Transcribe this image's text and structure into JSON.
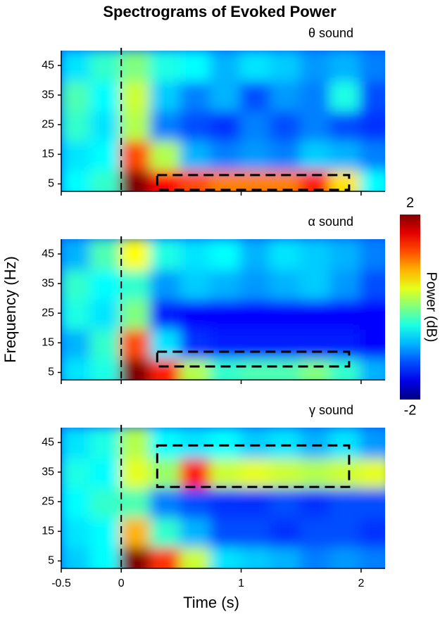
{
  "title": "Spectrograms of Evoked Power",
  "xlabel": "Time (s)",
  "ylabel": "Frequency (Hz)",
  "colorbar": {
    "label": "Power (dB)",
    "clim": [
      -2,
      2
    ],
    "ticks": [
      2,
      -2
    ]
  },
  "chart_data": [
    {
      "type": "heatmap",
      "label": "θ sound",
      "x": [
        -0.375,
        -0.125,
        0.125,
        0.375,
        0.625,
        0.875,
        1.125,
        1.375,
        1.625,
        1.875,
        2.125
      ],
      "y": [
        5,
        15,
        25,
        35,
        45
      ],
      "z": [
        [
          -0.5,
          -0.3,
          2,
          1.5,
          1.2,
          1.0,
          1.0,
          1.0,
          1.4,
          0.6,
          -0.5
        ],
        [
          -0.6,
          -0.5,
          1.2,
          0.2,
          -0.8,
          -1,
          -0.9,
          -1,
          -0.7,
          -0.8,
          -1
        ],
        [
          -0.3,
          -0.6,
          0.2,
          -1,
          -1.2,
          -1.3,
          -1,
          -1.2,
          -1,
          -1.2,
          -1.3
        ],
        [
          -0.2,
          -0.5,
          0.3,
          -0.7,
          -1,
          -0.8,
          -1.2,
          -0.9,
          -1,
          -0.4,
          -1.2
        ],
        [
          -0.6,
          -0.3,
          0,
          -0.4,
          -0.5,
          -0.8,
          -0.6,
          -0.7,
          -0.9,
          -0.8,
          -1
        ]
      ],
      "xlim": [
        -0.5,
        2.2
      ],
      "ylim": [
        2.5,
        50
      ],
      "xticks": [
        -0.5,
        0,
        1,
        2
      ],
      "yticks": [
        5,
        15,
        25,
        35,
        45
      ],
      "vline": 0,
      "box": {
        "x": [
          0.3,
          1.9
        ],
        "y": [
          3,
          8
        ]
      }
    },
    {
      "type": "heatmap",
      "label": "α sound",
      "x": [
        -0.375,
        -0.125,
        0.125,
        0.375,
        0.625,
        0.875,
        1.125,
        1.375,
        1.625,
        1.875,
        2.125
      ],
      "y": [
        5,
        15,
        25,
        35,
        45
      ],
      "z": [
        [
          -0.6,
          -0.4,
          2,
          1.4,
          0.2,
          -0.3,
          -0.2,
          -0.2,
          0,
          -0.3,
          -0.8
        ],
        [
          -0.8,
          -0.3,
          1.2,
          -0.6,
          -1.3,
          -1.4,
          -1.4,
          -1.4,
          -1.4,
          -1.4,
          -1.5
        ],
        [
          -0.4,
          -0.6,
          0,
          -1.4,
          -1.5,
          -1.5,
          -1.5,
          -1.5,
          -1.5,
          -1.5,
          -1.5
        ],
        [
          -0.3,
          -0.5,
          -0.3,
          -0.9,
          -0.7,
          -0.8,
          -0.9,
          -0.8,
          -0.7,
          -0.9,
          -1.2
        ],
        [
          -0.8,
          -0.2,
          0.5,
          -0.4,
          -0.6,
          -0.5,
          -0.8,
          -0.6,
          -0.7,
          -0.8,
          -1
        ]
      ],
      "xlim": [
        -0.5,
        2.2
      ],
      "ylim": [
        2.5,
        50
      ],
      "xticks": [
        -0.5,
        0,
        1,
        2
      ],
      "yticks": [
        5,
        15,
        25,
        35,
        45
      ],
      "vline": 0,
      "box": {
        "x": [
          0.3,
          1.9
        ],
        "y": [
          7,
          12
        ]
      }
    },
    {
      "type": "heatmap",
      "label": "γ sound",
      "x": [
        -0.375,
        -0.125,
        0.125,
        0.375,
        0.625,
        0.875,
        1.125,
        1.375,
        1.625,
        1.875,
        2.125
      ],
      "y": [
        5,
        15,
        25,
        35,
        45
      ],
      "z": [
        [
          -0.7,
          -0.5,
          2,
          1.3,
          0.3,
          -0.6,
          -0.7,
          -0.8,
          -1,
          -0.9,
          -1
        ],
        [
          -0.6,
          -0.5,
          0.8,
          -0.3,
          -0.8,
          -1.2,
          -1.2,
          -1.3,
          -1.2,
          -1.2,
          -1.3
        ],
        [
          -0.5,
          -0.3,
          -0.2,
          -1,
          -1.2,
          -1.3,
          -1.3,
          -1.2,
          -1.3,
          -1.2,
          -1.2
        ],
        [
          -0.4,
          -0.5,
          0.4,
          0.1,
          1.4,
          0.3,
          0.4,
          0.3,
          0.2,
          0.3,
          0.4
        ],
        [
          -0.6,
          -0.4,
          0.2,
          -0.5,
          -0.6,
          -0.5,
          -0.7,
          -0.6,
          -0.8,
          -0.6,
          -0.9
        ]
      ],
      "xlim": [
        -0.5,
        2.2
      ],
      "ylim": [
        2.5,
        50
      ],
      "xticks": [
        -0.5,
        0,
        1,
        2
      ],
      "yticks": [
        5,
        15,
        25,
        35,
        45
      ],
      "vline": 0,
      "box": {
        "x": [
          0.3,
          1.9
        ],
        "y": [
          30,
          44
        ]
      }
    }
  ]
}
